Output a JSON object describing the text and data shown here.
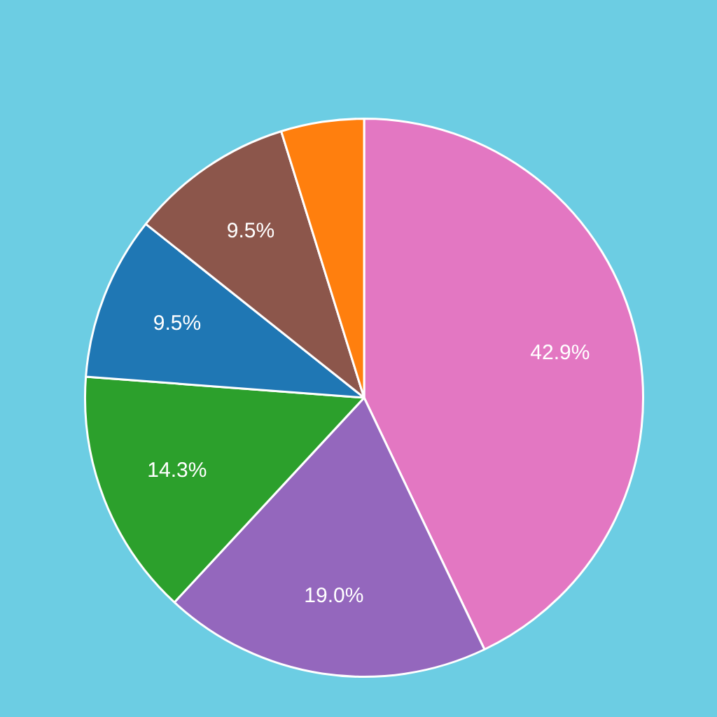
{
  "chart_data": {
    "type": "pie",
    "categories": [
      null,
      null,
      null,
      null,
      null,
      null
    ],
    "values": [
      42.9,
      19.0,
      14.3,
      9.5,
      9.5,
      4.8
    ],
    "colors": [
      "#e377c2",
      "#9467bd",
      "#2ca02c",
      "#1f77b4",
      "#8c564b",
      "#ff7f0e"
    ],
    "value_labels": [
      "42.9%",
      "19.0%",
      "14.3%",
      "9.5%",
      "9.5%",
      null
    ]
  }
}
